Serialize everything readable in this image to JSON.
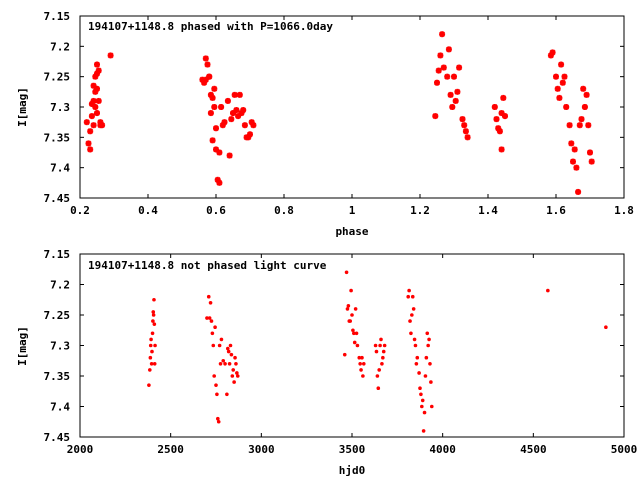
{
  "chart_data": [
    {
      "type": "scatter",
      "title": "194107+1148.8 phased with P=1066.0day",
      "xlabel": "phase",
      "ylabel": "I[mag]",
      "xlim": [
        0.2,
        1.8
      ],
      "ylim": [
        7.15,
        7.45
      ],
      "y_inverted": true,
      "grid": false,
      "marker": "plus-star",
      "x_ticks": [
        "0.2",
        "0.4",
        "0.6",
        "0.8",
        "1",
        "1.2",
        "1.4",
        "1.6",
        "1.8"
      ],
      "y_ticks": [
        "7.15",
        "7.2",
        "7.25",
        "7.3",
        "7.35",
        "7.4",
        "7.45"
      ],
      "colors": {
        "points": "#ff0000",
        "frame": "#000000"
      },
      "series": [
        {
          "x": [
            0.22,
            0.225,
            0.23,
            0.23,
            0.235,
            0.235,
            0.24,
            0.24,
            0.24,
            0.245,
            0.245,
            0.245,
            0.25,
            0.25,
            0.25,
            0.25,
            0.255,
            0.255,
            0.26,
            0.26,
            0.265,
            0.29,
            0.56,
            0.565,
            0.57,
            0.57,
            0.575,
            0.58,
            0.58,
            0.585,
            0.585,
            0.59,
            0.59,
            0.595,
            0.595,
            0.6,
            0.6,
            0.605,
            0.61,
            0.61,
            0.615,
            0.62,
            0.625,
            0.635,
            0.64,
            0.645,
            0.65,
            0.655,
            0.66,
            0.665,
            0.67,
            0.675,
            0.68,
            0.685,
            0.69,
            0.695,
            0.7,
            0.705,
            0.71,
            1.245,
            1.25,
            1.255,
            1.26,
            1.265,
            1.27,
            1.28,
            1.285,
            1.29,
            1.295,
            1.3,
            1.305,
            1.31,
            1.315,
            1.325,
            1.33,
            1.335,
            1.34,
            1.42,
            1.425,
            1.43,
            1.435,
            1.44,
            1.44,
            1.445,
            1.45,
            1.585,
            1.59,
            1.6,
            1.605,
            1.61,
            1.615,
            1.62,
            1.625,
            1.63,
            1.64,
            1.645,
            1.65,
            1.655,
            1.66,
            1.665,
            1.67,
            1.675,
            1.68,
            1.685,
            1.69,
            1.695,
            1.7,
            1.705
          ],
          "y": [
            7.325,
            7.36,
            7.37,
            7.34,
            7.315,
            7.295,
            7.33,
            7.265,
            7.29,
            7.25,
            7.3,
            7.275,
            7.23,
            7.245,
            7.27,
            7.31,
            7.29,
            7.24,
            7.325,
            7.33,
            7.33,
            7.215,
            7.255,
            7.26,
            7.22,
            7.255,
            7.23,
            7.25,
            7.25,
            7.28,
            7.31,
            7.285,
            7.355,
            7.3,
            7.27,
            7.335,
            7.37,
            7.42,
            7.425,
            7.375,
            7.3,
            7.33,
            7.325,
            7.29,
            7.38,
            7.32,
            7.31,
            7.28,
            7.305,
            7.315,
            7.28,
            7.31,
            7.305,
            7.33,
            7.35,
            7.35,
            7.345,
            7.325,
            7.33,
            7.315,
            7.26,
            7.24,
            7.215,
            7.18,
            7.235,
            7.25,
            7.205,
            7.28,
            7.3,
            7.25,
            7.29,
            7.275,
            7.235,
            7.32,
            7.33,
            7.34,
            7.35,
            7.3,
            7.32,
            7.335,
            7.34,
            7.37,
            7.31,
            7.285,
            7.315,
            7.215,
            7.21,
            7.25,
            7.27,
            7.285,
            7.23,
            7.26,
            7.25,
            7.3,
            7.33,
            7.36,
            7.39,
            7.37,
            7.4,
            7.44,
            7.33,
            7.32,
            7.27,
            7.3,
            7.28,
            7.33,
            7.375,
            7.39
          ]
        }
      ]
    },
    {
      "type": "scatter",
      "title": "194107+1148.8 not phased light curve",
      "xlabel": "hjd0",
      "ylabel": "I[mag]",
      "xlim": [
        2000,
        5000
      ],
      "ylim": [
        7.15,
        7.45
      ],
      "y_inverted": true,
      "grid": false,
      "marker": "dot",
      "x_ticks": [
        "2000",
        "2500",
        "3000",
        "3500",
        "4000",
        "4500",
        "5000"
      ],
      "y_ticks": [
        "7.15",
        "7.2",
        "7.25",
        "7.3",
        "7.35",
        "7.4",
        "7.45"
      ],
      "colors": {
        "points": "#ff0000",
        "frame": "#000000"
      },
      "series": [
        {
          "x": [
            2380,
            2385,
            2388,
            2390,
            2392,
            2395,
            2397,
            2400,
            2402,
            2404,
            2406,
            2408,
            2410,
            2412,
            2414,
            2700,
            2710,
            2715,
            2720,
            2725,
            2730,
            2735,
            2740,
            2745,
            2750,
            2755,
            2760,
            2765,
            2770,
            2775,
            2780,
            2790,
            2800,
            2810,
            2815,
            2820,
            2825,
            2830,
            2835,
            2840,
            2845,
            2850,
            2855,
            2860,
            2865,
            2870,
            3460,
            3470,
            3475,
            3480,
            3485,
            3490,
            3495,
            3500,
            3505,
            3510,
            3515,
            3520,
            3525,
            3530,
            3540,
            3545,
            3550,
            3555,
            3560,
            3565,
            3630,
            3635,
            3640,
            3645,
            3650,
            3655,
            3660,
            3665,
            3670,
            3675,
            3680,
            3810,
            3815,
            3820,
            3825,
            3830,
            3835,
            3840,
            3845,
            3850,
            3855,
            3860,
            3870,
            3875,
            3880,
            3885,
            3890,
            3895,
            3900,
            3905,
            3910,
            3915,
            3920,
            3925,
            3930,
            3935,
            3940,
            4580,
            4900
          ],
          "y": [
            7.365,
            7.34,
            7.32,
            7.3,
            7.29,
            7.33,
            7.31,
            7.28,
            7.26,
            7.245,
            7.25,
            7.225,
            7.265,
            7.33,
            7.3,
            7.255,
            7.22,
            7.255,
            7.23,
            7.26,
            7.28,
            7.3,
            7.35,
            7.27,
            7.365,
            7.38,
            7.42,
            7.425,
            7.3,
            7.33,
            7.29,
            7.325,
            7.33,
            7.38,
            7.305,
            7.31,
            7.33,
            7.3,
            7.315,
            7.35,
            7.34,
            7.36,
            7.32,
            7.33,
            7.345,
            7.35,
            7.315,
            7.18,
            7.24,
            7.235,
            7.26,
            7.26,
            7.21,
            7.25,
            7.275,
            7.28,
            7.295,
            7.24,
            7.28,
            7.3,
            7.32,
            7.33,
            7.34,
            7.32,
            7.35,
            7.33,
            7.3,
            7.31,
            7.35,
            7.37,
            7.34,
            7.3,
            7.29,
            7.33,
            7.32,
            7.31,
            7.3,
            7.22,
            7.21,
            7.26,
            7.28,
            7.25,
            7.22,
            7.24,
            7.29,
            7.3,
            7.33,
            7.32,
            7.345,
            7.37,
            7.38,
            7.4,
            7.39,
            7.44,
            7.41,
            7.35,
            7.32,
            7.28,
            7.3,
            7.29,
            7.33,
            7.36,
            7.4,
            7.21,
            7.27
          ]
        }
      ]
    }
  ]
}
